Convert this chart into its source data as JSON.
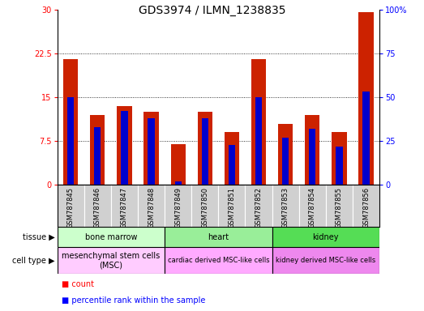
{
  "title": "GDS3974 / ILMN_1238835",
  "samples": [
    "GSM787845",
    "GSM787846",
    "GSM787847",
    "GSM787848",
    "GSM787849",
    "GSM787850",
    "GSM787851",
    "GSM787852",
    "GSM787853",
    "GSM787854",
    "GSM787855",
    "GSM787856"
  ],
  "red_values": [
    21.5,
    12.0,
    13.5,
    12.5,
    7.0,
    12.5,
    9.0,
    21.5,
    10.5,
    12.0,
    9.0,
    29.5
  ],
  "blue_percentiles": [
    50,
    33,
    42,
    38,
    2,
    38,
    23,
    50,
    27,
    32,
    22,
    53
  ],
  "ylim_left": [
    0,
    30
  ],
  "ylim_right": [
    0,
    100
  ],
  "yticks_left": [
    0,
    7.5,
    15,
    22.5,
    30
  ],
  "yticks_right": [
    0,
    25,
    50,
    75,
    100
  ],
  "tissue_groups": [
    {
      "label": "bone marrow",
      "start": 0,
      "end": 3,
      "color": "#ccffcc"
    },
    {
      "label": "heart",
      "start": 4,
      "end": 7,
      "color": "#99ee99"
    },
    {
      "label": "kidney",
      "start": 8,
      "end": 11,
      "color": "#55dd55"
    }
  ],
  "cell_type_groups": [
    {
      "label": "mesenchymal stem cells\n(MSC)",
      "start": 0,
      "end": 3,
      "color": "#ffccff"
    },
    {
      "label": "cardiac derived MSC-like cells",
      "start": 4,
      "end": 7,
      "color": "#ffaaff"
    },
    {
      "label": "kidney derived MSC-like cells",
      "start": 8,
      "end": 11,
      "color": "#ee88ee"
    }
  ],
  "bar_color": "#cc2200",
  "blue_color": "#0000cc",
  "bar_width": 0.55,
  "blue_bar_width": 0.25,
  "title_fontsize": 10,
  "label_fontsize": 7,
  "tick_fontsize": 7,
  "sample_fontsize": 6,
  "annotation_fontsize": 7,
  "legend_fontsize": 7,
  "xlab_bg": "#d0d0d0",
  "bg_color": "#ffffff"
}
